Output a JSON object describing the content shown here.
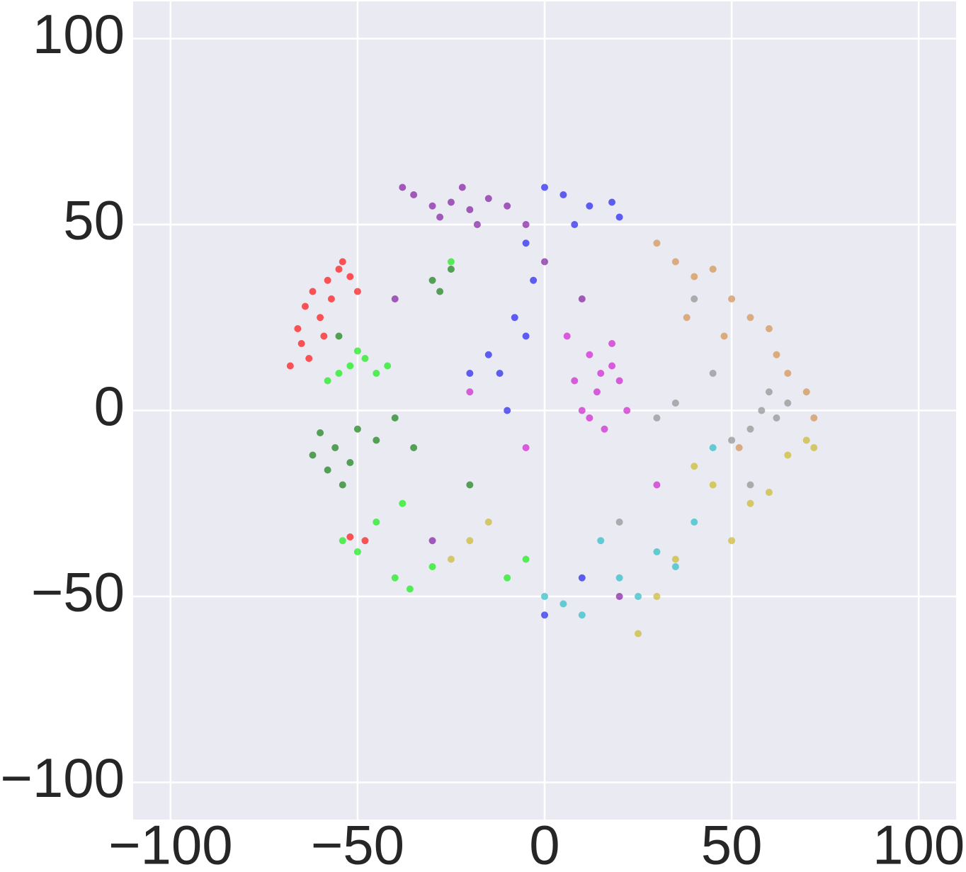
{
  "chart_data": {
    "type": "scatter",
    "xlim": [
      -110,
      110
    ],
    "ylim": [
      -110,
      110
    ],
    "xticks": [
      {
        "value": -100,
        "label": "−100"
      },
      {
        "value": -50,
        "label": "−50"
      },
      0,
      50,
      100
    ],
    "yticks": [
      {
        "value": -100,
        "label": "−100"
      },
      {
        "value": -50,
        "label": "−50"
      },
      0,
      50,
      100
    ],
    "grid": true,
    "series": [
      {
        "color": "#ff0000",
        "x": [
          -62,
          -58,
          -55,
          -64,
          -60,
          -57,
          -52,
          -66,
          -63,
          -68,
          -65,
          -54,
          -50,
          -59,
          -48,
          -52
        ],
        "y": [
          32,
          35,
          38,
          28,
          25,
          30,
          36,
          22,
          14,
          12,
          18,
          40,
          32,
          20,
          -35,
          -34
        ]
      },
      {
        "color": "#00ee00",
        "x": [
          -52,
          -48,
          -55,
          -45,
          -50,
          -58,
          -42,
          -54,
          -50,
          -45,
          -40,
          -36,
          -30,
          -38,
          -10,
          -25,
          -5
        ],
        "y": [
          12,
          14,
          10,
          10,
          16,
          8,
          12,
          -35,
          -38,
          -30,
          -45,
          -48,
          -42,
          -25,
          -45,
          40,
          -40
        ]
      },
      {
        "color": "#007700",
        "x": [
          -60,
          -56,
          -52,
          -58,
          -54,
          -50,
          -45,
          -40,
          -35,
          -30,
          -28,
          -25,
          -55,
          -20,
          -62
        ],
        "y": [
          -6,
          -10,
          -14,
          -16,
          -20,
          -5,
          -8,
          -2,
          -10,
          35,
          32,
          38,
          20,
          -20,
          -12
        ]
      },
      {
        "color": "#7a0a9a",
        "x": [
          -35,
          -30,
          -25,
          -20,
          -15,
          -10,
          -28,
          -18,
          -38,
          -5,
          -22,
          -40,
          0,
          10,
          -30,
          20
        ],
        "y": [
          58,
          55,
          56,
          54,
          57,
          55,
          52,
          50,
          60,
          50,
          60,
          30,
          40,
          30,
          -35,
          -50
        ]
      },
      {
        "color": "#1010ee",
        "x": [
          0,
          5,
          12,
          18,
          20,
          8,
          -5,
          -3,
          -8,
          -15,
          -12,
          -5,
          -20,
          10,
          -10,
          0
        ],
        "y": [
          60,
          58,
          55,
          56,
          52,
          50,
          45,
          35,
          25,
          15,
          10,
          20,
          10,
          -45,
          0,
          -55
        ]
      },
      {
        "color": "#cc10cc",
        "x": [
          12,
          15,
          18,
          14,
          10,
          16,
          20,
          8,
          12,
          18,
          6,
          22,
          -20,
          -5,
          30
        ],
        "y": [
          15,
          10,
          12,
          5,
          0,
          -5,
          8,
          8,
          -2,
          18,
          20,
          0,
          5,
          -10,
          -20
        ]
      },
      {
        "color": "#d08840",
        "x": [
          35,
          40,
          45,
          50,
          55,
          60,
          62,
          65,
          70,
          72,
          48,
          38,
          30,
          52
        ],
        "y": [
          40,
          36,
          38,
          30,
          25,
          22,
          15,
          10,
          5,
          -2,
          20,
          25,
          45,
          -10
        ]
      },
      {
        "color": "#888888",
        "x": [
          58,
          62,
          65,
          55,
          50,
          60,
          35,
          30,
          45,
          40,
          20,
          55
        ],
        "y": [
          0,
          -2,
          2,
          -5,
          -8,
          5,
          2,
          -2,
          10,
          30,
          -30,
          -20
        ]
      },
      {
        "color": "#c8b418",
        "x": [
          70,
          72,
          65,
          40,
          45,
          55,
          60,
          50,
          -20,
          -25,
          -15,
          30,
          25,
          35
        ],
        "y": [
          -8,
          -10,
          -12,
          -15,
          -20,
          -25,
          -22,
          -35,
          -35,
          -40,
          -30,
          -50,
          -60,
          -40
        ]
      },
      {
        "color": "#18b8c0",
        "x": [
          30,
          35,
          25,
          20,
          5,
          0,
          10,
          40,
          45,
          15
        ],
        "y": [
          -38,
          -42,
          -50,
          -45,
          -52,
          -50,
          -55,
          -30,
          -10,
          -35
        ]
      }
    ]
  }
}
